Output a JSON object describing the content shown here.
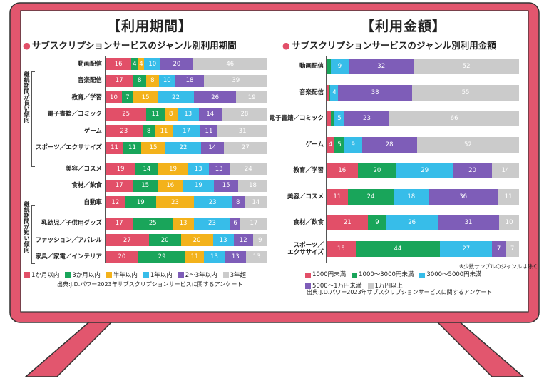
{
  "colors": {
    "red": "#e24f68",
    "green": "#19a55a",
    "yellow": "#f3b21b",
    "blue": "#37bde9",
    "purple": "#7e5db8",
    "gray": "#cbcbcb",
    "frame": "#e2566e"
  },
  "chart_data": [
    {
      "type": "bar",
      "orientation": "horizontal-stacked-100",
      "title": "【利用期間】",
      "subtitle": "サブスクリプションサービスのジャンル別利用期間",
      "group_labels": [
        "継続期間が長い傾向",
        "継続期間が短い傾向"
      ],
      "series_names": [
        "1か月以内",
        "3か月以内",
        "半年以内",
        "1年以内",
        "2～3年以内",
        "3年超"
      ],
      "series_colors": [
        "red",
        "green",
        "yellow",
        "blue",
        "purple",
        "gray"
      ],
      "categories": [
        "動画配信",
        "音楽配信",
        "教育／学習",
        "電子書籍／コミック",
        "ゲーム",
        "スポーツ／エクササイズ",
        "美容／コスメ",
        "食材／飲食",
        "自動車",
        "乳幼児／子供用グッズ",
        "ファッション／アパレル",
        "家具／家電／インテリア"
      ],
      "rows": [
        [
          16,
          4,
          4,
          10,
          20,
          46
        ],
        [
          17,
          8,
          8,
          10,
          18,
          39
        ],
        [
          10,
          7,
          15,
          22,
          26,
          19
        ],
        [
          25,
          11,
          8,
          13,
          14,
          28
        ],
        [
          23,
          8,
          11,
          17,
          11,
          31
        ],
        [
          11,
          11,
          15,
          22,
          14,
          27
        ],
        [
          19,
          14,
          19,
          13,
          13,
          24
        ],
        [
          17,
          15,
          16,
          19,
          15,
          18
        ],
        [
          12,
          19,
          23,
          23,
          8,
          14
        ],
        [
          17,
          25,
          13,
          23,
          6,
          17
        ],
        [
          27,
          20,
          20,
          13,
          12,
          9
        ],
        [
          20,
          29,
          11,
          13,
          13,
          13
        ]
      ],
      "legend": [
        "1か月以内",
        "3か月以内",
        "半年以内",
        "1年以内",
        "2～3年以内",
        "3年超"
      ],
      "source": "出典:J.D.パワー2023年サブスクリプションサービスに関するアンケート"
    },
    {
      "type": "bar",
      "orientation": "horizontal-stacked-100",
      "title": "【利用金額】",
      "subtitle": "サブスクリプションサービスのジャンル別利用金額",
      "series_names": [
        "1000円未満",
        "1000～3000円未満",
        "3000～5000円未満",
        "5000～1万円未満",
        "1万円以上"
      ],
      "series_colors": [
        "red",
        "green",
        "blue",
        "purple",
        "gray"
      ],
      "categories": [
        "動画配信",
        "音楽配信",
        "電子書籍／コミック",
        "ゲーム",
        "教育／学習",
        "美容／コスメ",
        "食材／飲食",
        "スポーツ／エクササイズ"
      ],
      "category_lines": [
        [
          "動画配信"
        ],
        [
          "音楽配信"
        ],
        [
          "電子書籍／コミック"
        ],
        [
          "ゲーム"
        ],
        [
          "教育／学習"
        ],
        [
          "美容／コスメ"
        ],
        [
          "食材／飲食"
        ],
        [
          "スポーツ／",
          "エクササイズ"
        ]
      ],
      "rows": [
        [
          0,
          2,
          9,
          32,
          52
        ],
        [
          1,
          1,
          4,
          38,
          55
        ],
        [
          2,
          2,
          5,
          23,
          66
        ],
        [
          4,
          5,
          9,
          28,
          52
        ],
        [
          16,
          20,
          29,
          20,
          14
        ],
        [
          11,
          24,
          18,
          36,
          11
        ],
        [
          21,
          9,
          26,
          31,
          10
        ],
        [
          15,
          44,
          27,
          7,
          7
        ]
      ],
      "legend": [
        "1000円未満",
        "1000～3000円未満",
        "3000～5000円未満",
        "5000～1万円未満",
        "1万円以上"
      ],
      "note": "※少数サンプルのジャンルは除く",
      "source": "出典:J.D.パワー2023年サブスクリプションサービスに関するアンケート"
    }
  ]
}
